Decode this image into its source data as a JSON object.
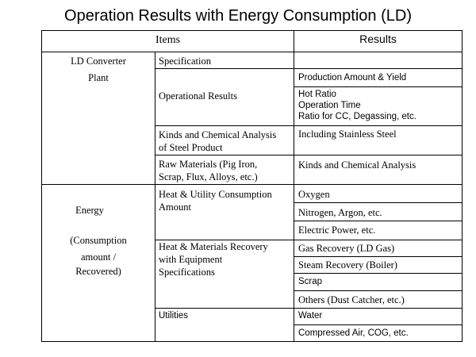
{
  "title": "Operation Results with Energy Consumption (LD)",
  "header": {
    "items": "Items",
    "results": "Results"
  },
  "sections": {
    "ld_converter": {
      "label_line1": "LD Converter",
      "label_line2": "Plant",
      "specification": "Specification",
      "operational_results": "Operational Results",
      "production_amount": "Production Amount & Yield",
      "hot_ratio": "Hot Ratio",
      "operation_time": "Operation Time",
      "ratio_cc": "Ratio for CC, Degassing, etc.",
      "kinds_chem_line1": "Kinds and Chemical Analysis",
      "kinds_chem_line2": "of Steel Product",
      "including_stainless": "Including Stainless Steel",
      "raw_materials_line1": "Raw Materials  (Pig Iron,",
      "raw_materials_line2": "Scrap, Flux, Alloys, etc.)",
      "kinds_chem_analysis": "Kinds and Chemical Analysis"
    },
    "energy": {
      "label_energy": "Energy",
      "label_consumption": "(Consumption",
      "label_amount": "amount /",
      "label_recovered": "Recovered)",
      "heat_utility_line1": "Heat & Utility Consumption",
      "heat_utility_line2": "Amount",
      "oxygen": "Oxygen",
      "nitrogen": "Nitrogen,  Argon, etc.",
      "electric": "Electric Power, etc.",
      "heat_materials_line1": "Heat & Materials Recovery",
      "heat_materials_line2": "with Equipment",
      "heat_materials_line3": "Specifications",
      "gas_recovery": "Gas Recovery (LD Gas)",
      "steam_recovery": "Steam Recovery (Boiler)",
      "scrap": "Scrap",
      "others": "Others  (Dust Catcher, etc.)",
      "utilities": "Utilities",
      "water": "Water",
      "compressed_air": "Compressed Air, COG, etc."
    }
  },
  "colors": {
    "border": "#000000",
    "text": "#000000",
    "background": "#ffffff"
  }
}
